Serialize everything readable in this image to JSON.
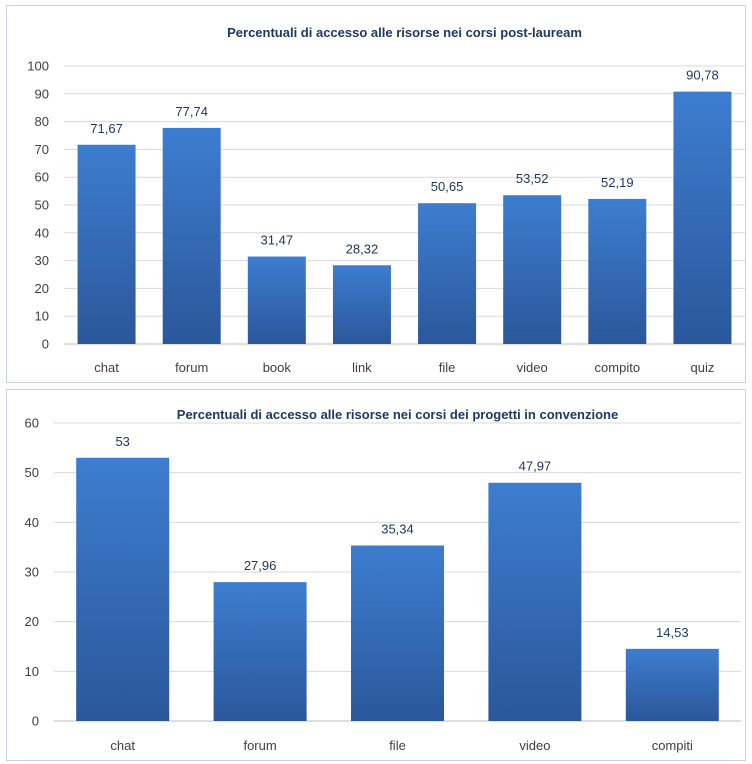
{
  "chart_data": [
    {
      "type": "bar",
      "title": "Percentuali di accesso alle risorse nei corsi post-lauream",
      "categories": [
        "chat",
        "forum",
        "book",
        "link",
        "file",
        "video",
        "compito",
        "quiz"
      ],
      "values": [
        71.67,
        77.74,
        31.47,
        28.32,
        50.65,
        53.52,
        52.19,
        90.78
      ],
      "value_labels": [
        "71,67",
        "77,74",
        "31,47",
        "28,32",
        "50,65",
        "53,52",
        "52,19",
        "90,78"
      ],
      "ylim": [
        0,
        100
      ],
      "yticks": [
        0,
        10,
        20,
        30,
        40,
        50,
        60,
        70,
        80,
        90,
        100
      ],
      "grid": true,
      "bar_color": "#3a76c4"
    },
    {
      "type": "bar",
      "title": "Percentuali di accesso alle risorse nei corsi dei progetti in convenzione",
      "categories": [
        "chat",
        "forum",
        "file",
        "video",
        "compiti"
      ],
      "values": [
        53,
        27.96,
        35.34,
        47.97,
        14.53
      ],
      "value_labels": [
        "53",
        "27,96",
        "35,34",
        "47,97",
        "14,53"
      ],
      "ylim": [
        0,
        60
      ],
      "yticks": [
        0,
        10,
        20,
        30,
        40,
        50,
        60
      ],
      "grid": true,
      "bar_color": "#3a76c4"
    }
  ]
}
